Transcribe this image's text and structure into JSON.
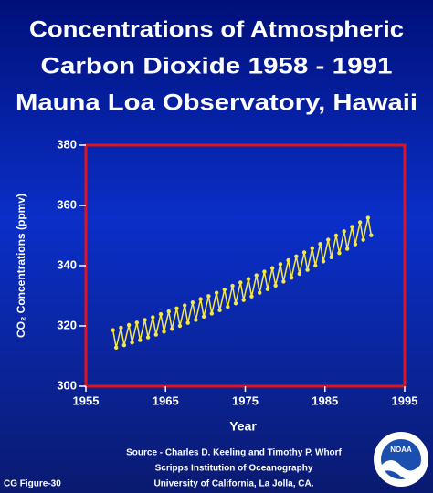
{
  "chart_data": {
    "type": "line",
    "title": [
      "Concentrations of Atmospheric",
      "Carbon Dioxide 1958 - 1991",
      "Mauna Loa Observatory, Hawaii"
    ],
    "x_label": "Year",
    "y_label": "CO₂ Concentrations (ppmv)",
    "xlim": [
      1955,
      1995
    ],
    "xticks": [
      1955,
      1965,
      1975,
      1985,
      1995
    ],
    "ylim": [
      300,
      380
    ],
    "yticks": [
      300,
      320,
      340,
      360,
      380
    ],
    "color": "#f4e84a",
    "frame_color": "#e0141e",
    "x": [
      1958.4,
      1958.8,
      1959.4,
      1959.8,
      1960.4,
      1960.8,
      1961.4,
      1961.8,
      1962.4,
      1962.8,
      1963.4,
      1963.8,
      1964.4,
      1964.8,
      1965.4,
      1965.8,
      1966.4,
      1966.8,
      1967.4,
      1967.8,
      1968.4,
      1968.8,
      1969.4,
      1969.8,
      1970.4,
      1970.8,
      1971.4,
      1971.8,
      1972.4,
      1972.8,
      1973.4,
      1973.8,
      1974.4,
      1974.8,
      1975.4,
      1975.8,
      1976.4,
      1976.8,
      1977.4,
      1977.8,
      1978.4,
      1978.8,
      1979.4,
      1979.8,
      1980.4,
      1980.8,
      1981.4,
      1981.8,
      1982.4,
      1982.8,
      1983.4,
      1983.8,
      1984.4,
      1984.8,
      1985.4,
      1985.8,
      1986.4,
      1986.8,
      1987.4,
      1987.8,
      1988.4,
      1988.8,
      1989.4,
      1989.8,
      1990.4,
      1990.8
    ],
    "values": [
      318.6,
      312.8,
      319.4,
      313.6,
      320.3,
      314.5,
      321.1,
      315.3,
      322.0,
      316.2,
      322.9,
      317.1,
      323.9,
      318.1,
      324.8,
      319.0,
      325.8,
      320.0,
      326.8,
      321.0,
      327.8,
      322.0,
      328.9,
      323.1,
      329.9,
      324.1,
      331.0,
      325.2,
      332.1,
      326.3,
      333.3,
      327.5,
      334.4,
      328.6,
      335.6,
      329.8,
      336.8,
      331.0,
      338.0,
      332.2,
      339.2,
      333.4,
      340.5,
      334.7,
      341.8,
      336.0,
      343.1,
      337.3,
      344.4,
      338.6,
      345.8,
      340.0,
      347.2,
      341.4,
      348.6,
      342.8,
      350.0,
      344.2,
      351.4,
      345.6,
      352.9,
      347.1,
      354.4,
      348.6,
      355.9,
      350.1
    ],
    "source": [
      "Source - Charles D. Keeling and Timothy P. Whorf",
      "Scripps Institution of Oceanography",
      "University of California, La Jolla, CA."
    ],
    "figure_label": "CG Figure-30",
    "logo_text": "NOAA"
  }
}
